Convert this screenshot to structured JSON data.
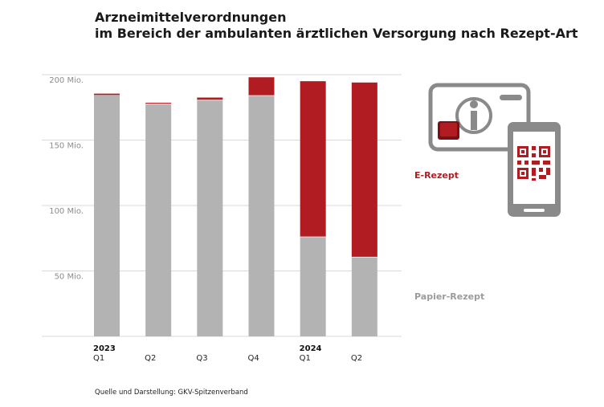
{
  "title_line1": "Arzneimittelverordnungen",
  "title_line2": "im Bereich der ambulanten ärztlichen Versorgung nach Rezept-Art",
  "source": "Quelle und Darstellung: GKV-Spitzenverband",
  "legend": {
    "e_rezept": "E-Rezept",
    "papier_rezept": "Papier-Rezept"
  },
  "colors": {
    "e_rezept": "#b01c22",
    "papier_rezept": "#b3b3b3",
    "grid": "#d9d9d9",
    "axis_label": "#8c8c8c",
    "icon": "#8a8a8a"
  },
  "illustration": {
    "card": "health-insurance-card-icon",
    "phone": "smartphone-qr-code-icon"
  },
  "chart_data": {
    "type": "bar",
    "stacked": true,
    "categories": [
      "Q1",
      "Q2",
      "Q3",
      "Q4",
      "Q1",
      "Q2"
    ],
    "year_labels": [
      "2023",
      "",
      "",
      "",
      "2024",
      ""
    ],
    "series": [
      {
        "name": "Papier-Rezept",
        "values": [
          184.5,
          177.5,
          180.5,
          184.0,
          76.0,
          60.5
        ]
      },
      {
        "name": "E-Rezept",
        "values": [
          1.0,
          1.0,
          2.0,
          14.0,
          119.0,
          133.5
        ]
      }
    ],
    "yticks": [
      50,
      100,
      150,
      200
    ],
    "ytick_labels": [
      "50 Mio.",
      "100 Mio.",
      "150 Mio.",
      "200 Mio."
    ],
    "ylim": [
      0,
      200
    ],
    "grid": true,
    "legend_position": "right"
  }
}
